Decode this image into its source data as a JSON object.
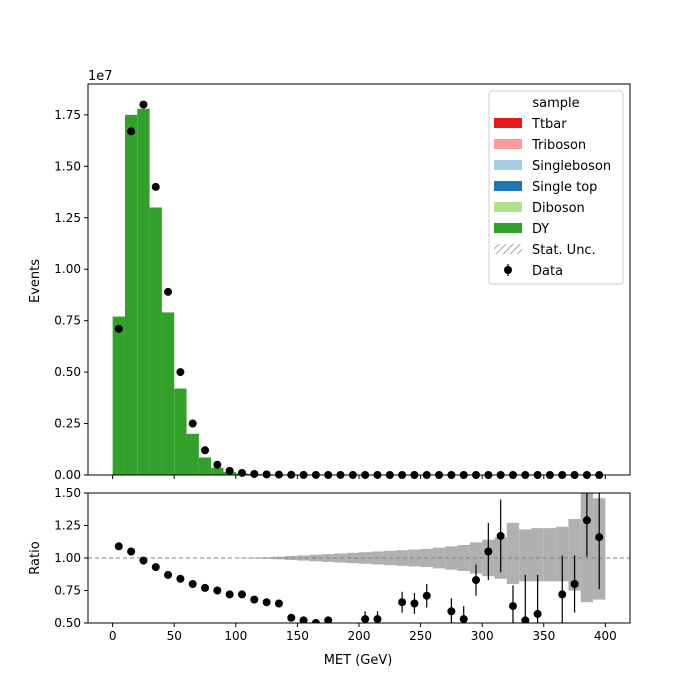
{
  "chart_data": [
    {
      "type": "bar",
      "panel": "main",
      "stacked": true,
      "xlabel": "",
      "ylabel": "Events",
      "y_offset_text": "1e7",
      "xlim": [
        -20,
        420
      ],
      "ylim": [
        0,
        1.9
      ],
      "y_unit_scale": 10000000,
      "x_ticks": [
        0,
        50,
        100,
        150,
        200,
        250,
        300,
        350,
        400
      ],
      "y_ticks": [
        "0.00",
        "0.25",
        "0.50",
        "0.75",
        "1.00",
        "1.25",
        "1.50",
        "1.75"
      ],
      "bin_edges": [
        0,
        10,
        20,
        30,
        40,
        50,
        60,
        70,
        80,
        90,
        100,
        110,
        120,
        130,
        140,
        150,
        160,
        170,
        180,
        190,
        200,
        210,
        220,
        230,
        240,
        250,
        260,
        270,
        280,
        290,
        300,
        310,
        320,
        330,
        340,
        350,
        360,
        370,
        380,
        390,
        400
      ],
      "series": [
        {
          "name": "Ttbar",
          "color": "#e41a1c",
          "values": [
            0,
            0,
            0,
            0,
            0,
            0,
            0,
            0,
            0,
            0,
            0,
            0,
            0,
            0,
            0,
            0,
            0,
            0,
            0,
            0,
            0,
            0,
            0,
            0,
            0,
            0,
            0,
            0,
            0,
            0,
            0,
            0,
            0,
            0,
            0,
            0,
            0,
            0,
            0,
            0
          ]
        },
        {
          "name": "Triboson",
          "color": "#fb9a99",
          "values": [
            0,
            0,
            0,
            0,
            0,
            0,
            0,
            0,
            0,
            0,
            0,
            0,
            0,
            0,
            0,
            0,
            0,
            0,
            0,
            0,
            0,
            0,
            0,
            0,
            0,
            0,
            0,
            0,
            0,
            0,
            0,
            0,
            0,
            0,
            0,
            0,
            0,
            0,
            0,
            0
          ]
        },
        {
          "name": "Singleboson",
          "color": "#a6cee3",
          "values": [
            0,
            0,
            0,
            0,
            0,
            0,
            0,
            0,
            0,
            0,
            0,
            0,
            0,
            0,
            0,
            0,
            0,
            0,
            0,
            0,
            0,
            0,
            0,
            0,
            0,
            0,
            0,
            0,
            0,
            0,
            0,
            0,
            0,
            0,
            0,
            0,
            0,
            0,
            0,
            0
          ]
        },
        {
          "name": "Single top",
          "color": "#1f78b4",
          "values": [
            0,
            0,
            0,
            0,
            0,
            0,
            0,
            0,
            0,
            0,
            0,
            0,
            0,
            0,
            0,
            0,
            0,
            0,
            0,
            0,
            0,
            0,
            0,
            0,
            0,
            0,
            0,
            0,
            0,
            0,
            0,
            0,
            0,
            0,
            0,
            0,
            0,
            0,
            0,
            0
          ]
        },
        {
          "name": "Diboson",
          "color": "#b2df8a",
          "values": [
            0,
            0,
            0,
            0,
            0,
            0,
            0,
            0,
            0,
            0,
            0,
            0,
            0,
            0,
            0,
            0,
            0,
            0,
            0,
            0,
            0,
            0,
            0,
            0,
            0,
            0,
            0,
            0,
            0,
            0,
            0,
            0,
            0,
            0,
            0,
            0,
            0,
            0,
            0,
            0
          ]
        },
        {
          "name": "DY",
          "color": "#33a02c",
          "values": [
            0.77,
            1.75,
            1.78,
            1.3,
            0.79,
            0.42,
            0.2,
            0.085,
            0.035,
            0.015,
            0.008,
            0.005,
            0.003,
            0.002,
            0.0015,
            0.001,
            0.0008,
            0.0006,
            0.0005,
            0.0004,
            0.0003,
            0.0003,
            0.0002,
            0.0002,
            0.0002,
            0.0001,
            0.0001,
            0.0001,
            0.0001,
            0.0001,
            0.0001,
            0.0001,
            0.0001,
            0.0001,
            0.0001,
            0,
            0,
            0,
            0,
            0
          ]
        }
      ],
      "data_points": {
        "name": "Data",
        "x": [
          5,
          15,
          25,
          35,
          45,
          55,
          65,
          75,
          85,
          95,
          105,
          115,
          125,
          135,
          145,
          155,
          165,
          175,
          185,
          195,
          205,
          215,
          225,
          235,
          245,
          255,
          265,
          275,
          285,
          295,
          305,
          315,
          325,
          335,
          345,
          355,
          365,
          375,
          385,
          395
        ],
        "y": [
          0.71,
          1.67,
          1.8,
          1.4,
          0.89,
          0.5,
          0.25,
          0.12,
          0.05,
          0.02,
          0.01,
          0.005,
          0.003,
          0.002,
          0.001,
          0.0005,
          0.0003,
          0.0002,
          0.0002,
          0.0001,
          0.0001,
          0.0001,
          0,
          0,
          0,
          0,
          0,
          0,
          0,
          0,
          0,
          0,
          0,
          0,
          0,
          0,
          0,
          0,
          0,
          0
        ]
      },
      "legend": {
        "title": "sample",
        "position": "upper right",
        "entries": [
          {
            "label": "Ttbar",
            "kind": "patch",
            "color": "#e41a1c"
          },
          {
            "label": "Triboson",
            "kind": "patch",
            "color": "#fb9a99"
          },
          {
            "label": "Singleboson",
            "kind": "patch",
            "color": "#a6cee3"
          },
          {
            "label": "Single top",
            "kind": "patch",
            "color": "#1f78b4"
          },
          {
            "label": "Diboson",
            "kind": "patch",
            "color": "#b2df8a"
          },
          {
            "label": "DY",
            "kind": "patch",
            "color": "#33a02c"
          },
          {
            "label": "Stat. Unc.",
            "kind": "hatch",
            "color": "#888888"
          },
          {
            "label": "Data",
            "kind": "errorbar",
            "color": "#000000"
          }
        ]
      }
    },
    {
      "type": "scatter",
      "panel": "ratio",
      "xlabel": "MET (GeV)",
      "ylabel": "Ratio",
      "xlim": [
        -20,
        420
      ],
      "ylim": [
        0.5,
        1.5
      ],
      "x_ticks": [
        0,
        50,
        100,
        150,
        200,
        250,
        300,
        350,
        400
      ],
      "y_ticks": [
        "0.50",
        "0.75",
        "1.00",
        "1.25",
        "1.50"
      ],
      "reference_line": 1.0,
      "unc_band": {
        "color": "#b0b0b0",
        "lo": [
          1,
          1,
          1,
          1,
          1,
          1,
          1,
          1,
          1,
          1,
          0.998,
          0.996,
          0.994,
          0.99,
          0.985,
          0.98,
          0.975,
          0.97,
          0.965,
          0.96,
          0.955,
          0.95,
          0.945,
          0.94,
          0.935,
          0.93,
          0.92,
          0.91,
          0.9,
          0.88,
          0.86,
          0.84,
          0.8,
          0.82,
          0.82,
          0.82,
          0.82,
          0.75,
          0.66,
          0.68
        ],
        "hi": [
          1,
          1,
          1,
          1,
          1,
          1,
          1,
          1,
          1,
          1,
          1.002,
          1.004,
          1.006,
          1.01,
          1.015,
          1.02,
          1.025,
          1.03,
          1.035,
          1.04,
          1.045,
          1.05,
          1.055,
          1.06,
          1.065,
          1.07,
          1.08,
          1.09,
          1.1,
          1.12,
          1.14,
          1.16,
          1.27,
          1.22,
          1.23,
          1.23,
          1.24,
          1.3,
          1.55,
          1.46
        ]
      },
      "points": {
        "x": [
          5,
          15,
          25,
          35,
          45,
          55,
          65,
          75,
          85,
          95,
          105,
          115,
          125,
          135,
          145,
          155,
          165,
          175,
          205,
          215,
          235,
          245,
          255,
          275,
          285,
          295,
          305,
          315,
          325,
          335,
          345,
          365,
          375,
          385,
          395
        ],
        "y": [
          1.09,
          1.05,
          0.98,
          0.93,
          0.87,
          0.84,
          0.8,
          0.77,
          0.75,
          0.72,
          0.72,
          0.68,
          0.66,
          0.65,
          0.54,
          0.52,
          0.5,
          0.52,
          0.53,
          0.53,
          0.66,
          0.65,
          0.71,
          0.59,
          0.53,
          0.83,
          1.05,
          1.17,
          0.63,
          0.52,
          0.57,
          0.72,
          0.8,
          1.29,
          1.16
        ],
        "err": [
          0,
          0,
          0,
          0,
          0,
          0,
          0,
          0,
          0,
          0,
          0,
          0,
          0,
          0,
          0,
          0,
          0,
          0,
          0.06,
          0.06,
          0.08,
          0.08,
          0.09,
          0.1,
          0.1,
          0.12,
          0.22,
          0.28,
          0.16,
          0.35,
          0.3,
          0.3,
          0.22,
          0.28,
          0.4
        ]
      }
    }
  ]
}
